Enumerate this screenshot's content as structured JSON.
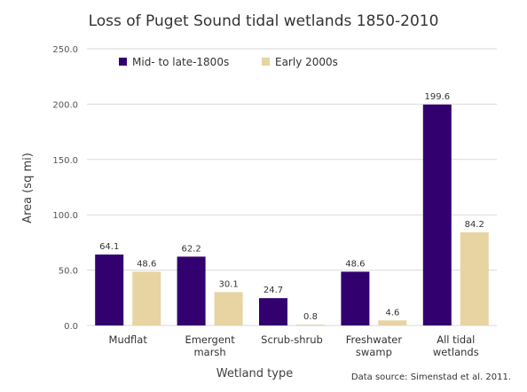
{
  "chart_data": {
    "type": "bar",
    "title": "Loss of Puget Sound tidal wetlands 1850-2010",
    "xlabel": "Wetland type",
    "ylabel": "Area (sq mi)",
    "ylim": [
      0,
      250
    ],
    "yticks": [
      "0.0",
      "50.0",
      "100.0",
      "150.0",
      "200.0",
      "250.0"
    ],
    "ytick_values": [
      0,
      50,
      100,
      150,
      200,
      250
    ],
    "grid": true,
    "legend_position": "top-left",
    "categories": [
      [
        "Mudflat"
      ],
      [
        "Emergent",
        "marsh"
      ],
      [
        "Scrub-shrub"
      ],
      [
        "Freshwater",
        "swamp"
      ],
      [
        "All tidal",
        "wetlands"
      ]
    ],
    "series": [
      {
        "name": "Mid- to late-1800s",
        "color": "#33006f",
        "values": [
          64.1,
          62.2,
          24.7,
          48.6,
          199.6
        ],
        "labels": [
          "64.1",
          "62.2",
          "24.7",
          "48.6",
          "199.6"
        ]
      },
      {
        "name": "Early 2000s",
        "color": "#e8d3a2",
        "values": [
          48.6,
          30.1,
          0.8,
          4.6,
          84.2
        ],
        "labels": [
          "48.6",
          "30.1",
          "0.8",
          "4.6",
          "84.2"
        ]
      }
    ],
    "source_note": "Data source: Simenstad et al. 2011."
  }
}
